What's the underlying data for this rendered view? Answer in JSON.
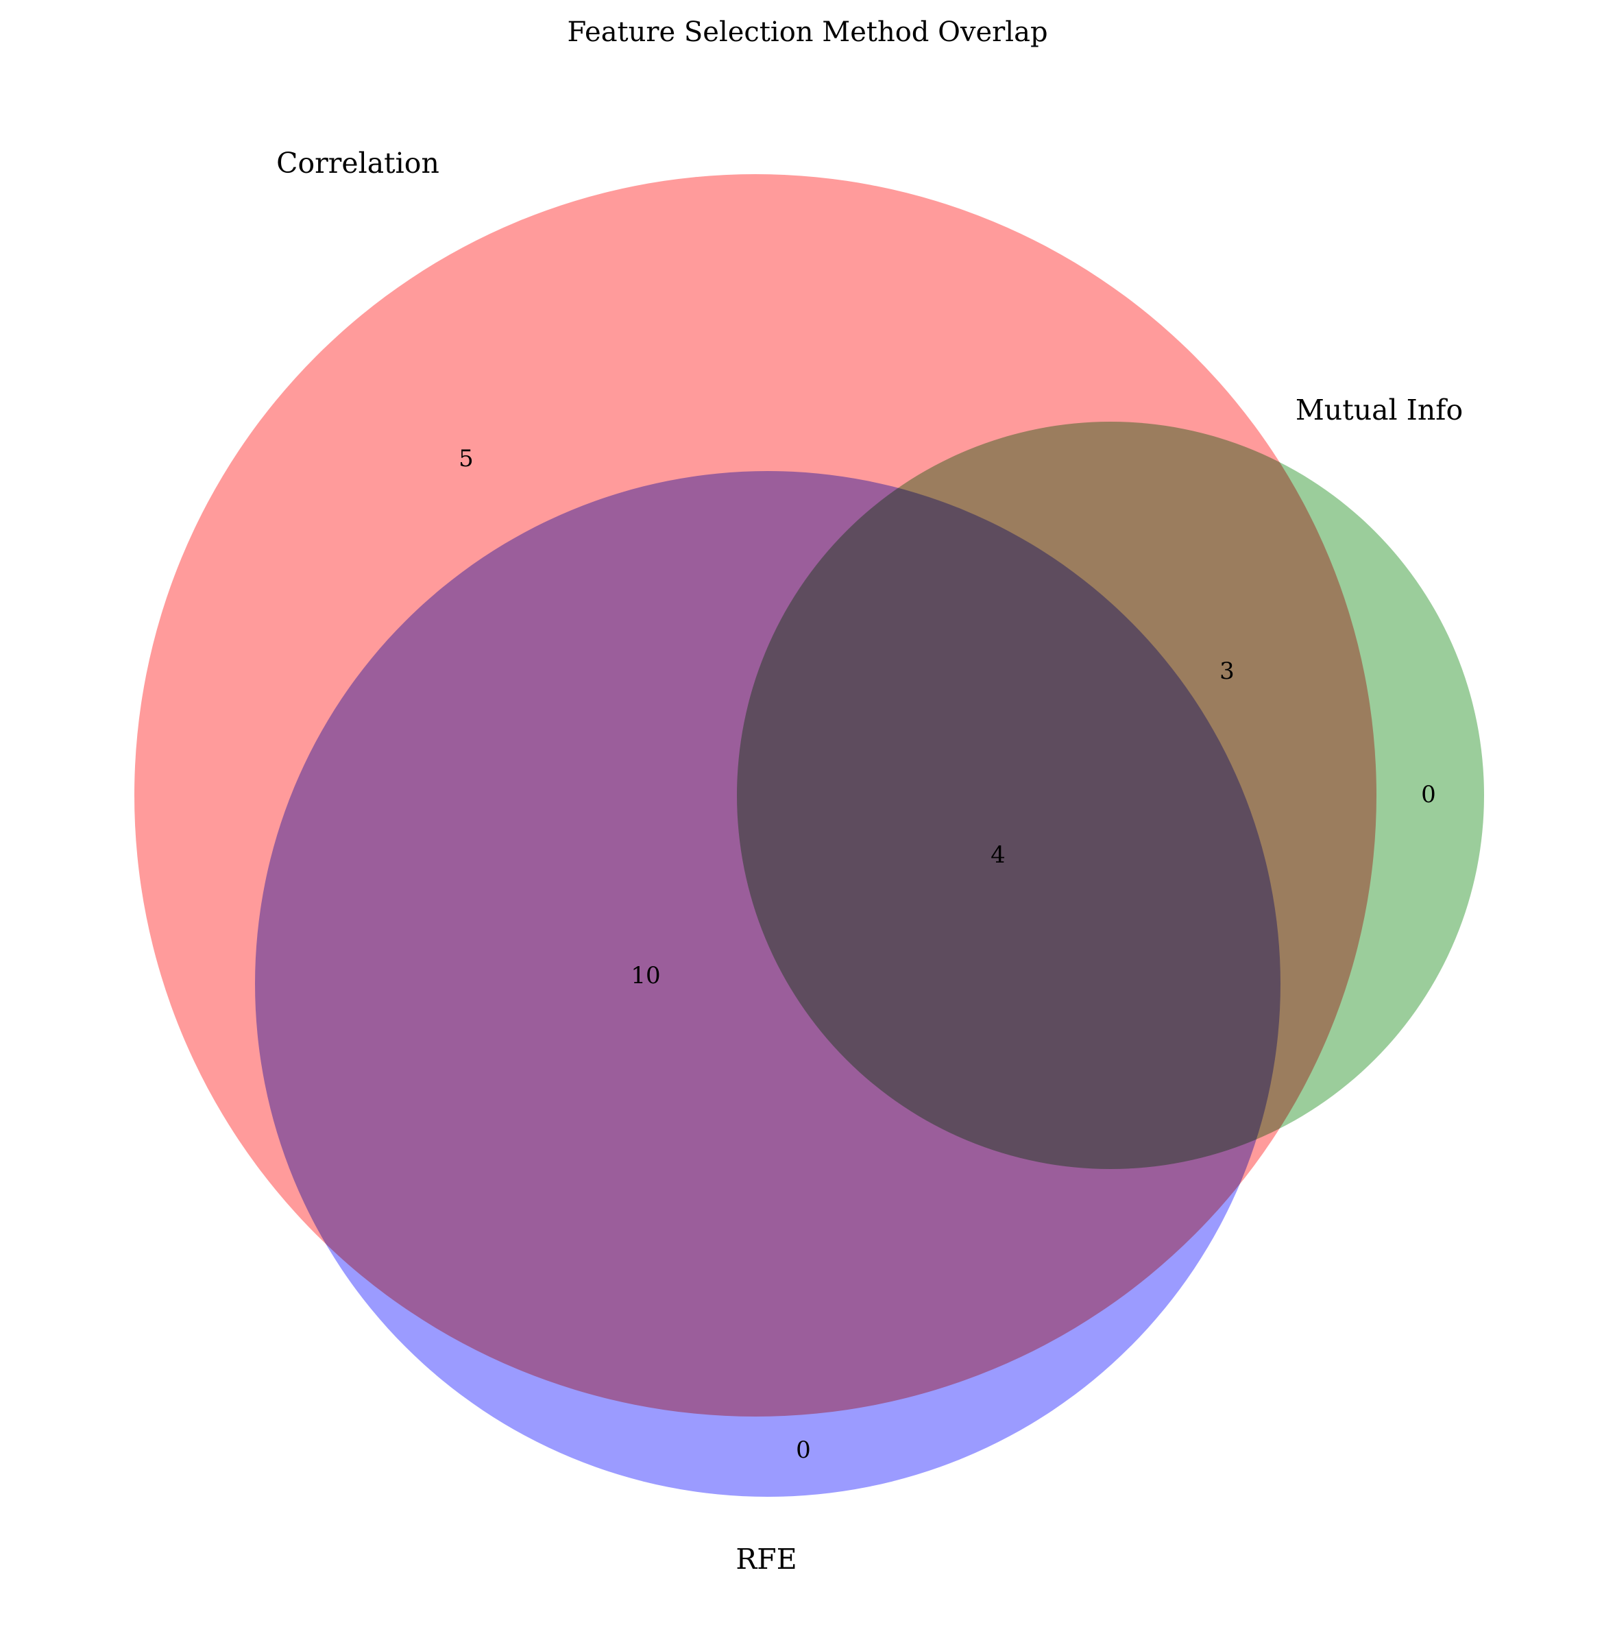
{
  "title": "Feature Selection Method Overlap",
  "sets": {
    "correlation": {
      "label": "Correlation",
      "color": "#ff6666"
    },
    "mutual_info": {
      "label": "Mutual Info",
      "color": "#66b266"
    },
    "rfe": {
      "label": "RFE",
      "color": "#6666ff"
    }
  },
  "regions": {
    "correlation_only": "5",
    "correlation_mutual_info": "3",
    "mutual_info_only": "0",
    "all_three": "4",
    "correlation_rfe": "10",
    "rfe_only": "0"
  },
  "fill_opacity": 0.65
}
